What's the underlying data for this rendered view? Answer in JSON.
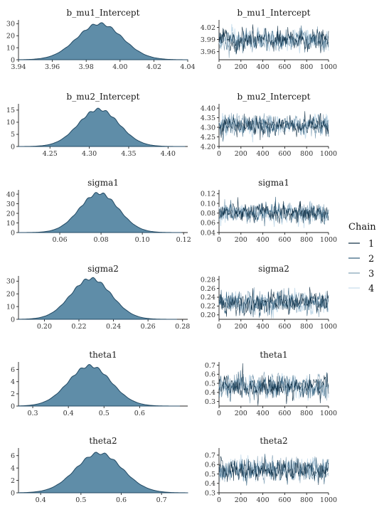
{
  "chart_data": [
    {
      "type": "area",
      "title": "b_mu1_Intercept",
      "xlim": [
        3.94,
        4.04
      ],
      "ylim": [
        0,
        32
      ],
      "xticks": [
        3.94,
        3.96,
        3.98,
        4.0,
        4.02,
        4.04
      ],
      "xtick_labels": [
        "3.94",
        "3.96",
        "3.98",
        "4.00",
        "4.02",
        "4.04"
      ],
      "yticks": [
        0,
        10,
        20,
        30
      ],
      "ytick_labels": [
        "0",
        "10",
        "20",
        "30"
      ],
      "density": {
        "mean": 3.988,
        "sd": 0.0135,
        "peak": 30
      }
    },
    {
      "type": "line",
      "title": "b_mu1_Intercept",
      "xlim": [
        0,
        1000
      ],
      "ylim": [
        3.94,
        4.035
      ],
      "xticks": [
        0,
        200,
        400,
        600,
        800,
        1000
      ],
      "xtick_labels": [
        "0",
        "200",
        "400",
        "600",
        "800",
        "1000"
      ],
      "yticks": [
        3.96,
        3.99,
        4.02
      ],
      "ytick_labels": [
        "3.96",
        "3.99",
        "4.02"
      ],
      "trace": {
        "mean": 3.988,
        "sd": 0.0125,
        "iterations": 1000
      }
    },
    {
      "type": "area",
      "title": "b_mu2_Intercept",
      "xlim": [
        4.21,
        4.425
      ],
      "ylim": [
        0,
        17
      ],
      "xticks": [
        4.25,
        4.3,
        4.35,
        4.4
      ],
      "xtick_labels": [
        "4.25",
        "4.30",
        "4.35",
        "4.40"
      ],
      "yticks": [
        0,
        5,
        10,
        15
      ],
      "ytick_labels": [
        "0",
        "5",
        "10",
        "15"
      ],
      "density": {
        "mean": 4.312,
        "sd": 0.026,
        "peak": 15.3
      }
    },
    {
      "type": "line",
      "title": "b_mu2_Intercept",
      "xlim": [
        0,
        1000
      ],
      "ylim": [
        4.2,
        4.415
      ],
      "xticks": [
        0,
        200,
        400,
        600,
        800,
        1000
      ],
      "xtick_labels": [
        "0",
        "200",
        "400",
        "600",
        "800",
        "1000"
      ],
      "yticks": [
        4.2,
        4.25,
        4.3,
        4.35,
        4.4
      ],
      "ytick_labels": [
        "4.20",
        "4.25",
        "4.30",
        "4.35",
        "4.40"
      ],
      "trace": {
        "mean": 4.312,
        "sd": 0.025,
        "iterations": 1000
      }
    },
    {
      "type": "area",
      "title": "sigma1",
      "xlim": [
        0.04,
        0.122
      ],
      "ylim": [
        0,
        43
      ],
      "xticks": [
        0.06,
        0.08,
        0.1,
        0.12
      ],
      "xtick_labels": [
        "0.06",
        "0.08",
        "0.10",
        "0.12"
      ],
      "yticks": [
        0,
        10,
        20,
        30,
        40
      ],
      "ytick_labels": [
        "0",
        "10",
        "20",
        "30",
        "40"
      ],
      "density": {
        "mean": 0.079,
        "sd": 0.0095,
        "peak": 41
      }
    },
    {
      "type": "line",
      "title": "sigma1",
      "xlim": [
        0,
        1000
      ],
      "ylim": [
        0.04,
        0.125
      ],
      "xticks": [
        0,
        200,
        400,
        600,
        800,
        1000
      ],
      "xtick_labels": [
        "0",
        "200",
        "400",
        "600",
        "800",
        "1000"
      ],
      "yticks": [
        0.04,
        0.06,
        0.08,
        0.1,
        0.12
      ],
      "ytick_labels": [
        "0.04",
        "0.06",
        "0.08",
        "0.10",
        "0.12"
      ],
      "trace": {
        "mean": 0.08,
        "sd": 0.0095,
        "iterations": 1000
      }
    },
    {
      "type": "area",
      "title": "sigma2",
      "xlim": [
        0.185,
        0.283
      ],
      "ylim": [
        0,
        33
      ],
      "xticks": [
        0.2,
        0.22,
        0.24,
        0.26,
        0.28
      ],
      "xtick_labels": [
        "0.20",
        "0.22",
        "0.24",
        "0.26",
        "0.28"
      ],
      "yticks": [
        0,
        10,
        20,
        30
      ],
      "ytick_labels": [
        "0",
        "10",
        "20",
        "30"
      ],
      "density": {
        "mean": 0.227,
        "sd": 0.0118,
        "peak": 32
      }
    },
    {
      "type": "line",
      "title": "sigma2",
      "xlim": [
        0,
        1000
      ],
      "ylim": [
        0.19,
        0.285
      ],
      "xticks": [
        0,
        200,
        400,
        600,
        800,
        1000
      ],
      "xtick_labels": [
        "0",
        "200",
        "400",
        "600",
        "800",
        "1000"
      ],
      "yticks": [
        0.2,
        0.22,
        0.24,
        0.26,
        0.28
      ],
      "ytick_labels": [
        "0.20",
        "0.22",
        "0.24",
        "0.26",
        "0.28"
      ],
      "trace": {
        "mean": 0.228,
        "sd": 0.012,
        "iterations": 1000
      }
    },
    {
      "type": "area",
      "title": "theta1",
      "xlim": [
        0.26,
        0.735
      ],
      "ylim": [
        0,
        7
      ],
      "xticks": [
        0.3,
        0.4,
        0.5,
        0.6
      ],
      "xtick_labels": [
        "0.3",
        "0.4",
        "0.5",
        "0.6"
      ],
      "yticks": [
        0,
        2,
        4,
        6
      ],
      "ytick_labels": [
        "0",
        "2",
        "4",
        "6"
      ],
      "density": {
        "mean": 0.46,
        "sd": 0.06,
        "peak": 6.6
      }
    },
    {
      "type": "line",
      "title": "theta1",
      "xlim": [
        0,
        1000
      ],
      "ylim": [
        0.25,
        0.72
      ],
      "xticks": [
        0,
        200,
        400,
        600,
        800,
        1000
      ],
      "xtick_labels": [
        "0",
        "200",
        "400",
        "600",
        "800",
        "1000"
      ],
      "yticks": [
        0.3,
        0.4,
        0.5,
        0.6,
        0.7
      ],
      "ytick_labels": [
        "0.3",
        "0.4",
        "0.5",
        "0.6",
        "0.7"
      ],
      "trace": {
        "mean": 0.46,
        "sd": 0.06,
        "iterations": 1000
      }
    },
    {
      "type": "area",
      "title": "theta2",
      "xlim": [
        0.345,
        0.765
      ],
      "ylim": [
        0,
        7
      ],
      "xticks": [
        0.4,
        0.5,
        0.6,
        0.7
      ],
      "xtick_labels": [
        "0.4",
        "0.5",
        "0.6",
        "0.7"
      ],
      "yticks": [
        0,
        2,
        4,
        6
      ],
      "ytick_labels": [
        "0",
        "2",
        "4",
        "6"
      ],
      "density": {
        "mean": 0.545,
        "sd": 0.058,
        "peak": 6.4
      }
    },
    {
      "type": "line",
      "title": "theta2",
      "xlim": [
        0,
        1000
      ],
      "ylim": [
        0.3,
        0.76
      ],
      "xticks": [
        0,
        200,
        400,
        600,
        800,
        1000
      ],
      "xtick_labels": [
        "0",
        "200",
        "400",
        "600",
        "800",
        "1000"
      ],
      "yticks": [
        0.3,
        0.4,
        0.5,
        0.6,
        0.7
      ],
      "ytick_labels": [
        "0.3",
        "0.4",
        "0.5",
        "0.6",
        "0.7"
      ],
      "trace": {
        "mean": 0.545,
        "sd": 0.058,
        "iterations": 1000
      }
    }
  ],
  "legend": {
    "title": "Chain",
    "placement": "right",
    "items": [
      {
        "label": "1",
        "color": "#0b2a40"
      },
      {
        "label": "2",
        "color": "#2e5c7a"
      },
      {
        "label": "3",
        "color": "#7f9fb5"
      },
      {
        "label": "4",
        "color": "#c6dceb"
      }
    ]
  },
  "colors": {
    "density_fill": "#5f8da8",
    "density_line": "#234a64",
    "axis": "#222222"
  }
}
